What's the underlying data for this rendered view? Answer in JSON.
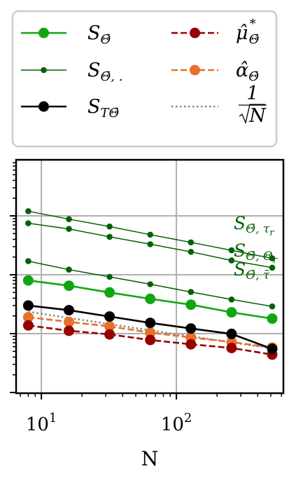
{
  "chart_data": {
    "type": "line",
    "xlabel": "N",
    "ylabel": "",
    "xscale": "log",
    "yscale": "log",
    "xlim": [
      6.5,
      620
    ],
    "x_ticks": [
      {
        "value": 10,
        "base": "10",
        "exp": "1"
      },
      {
        "value": 100,
        "base": "10",
        "exp": "2"
      }
    ],
    "x": [
      8,
      16,
      32,
      64,
      128,
      256,
      512
    ],
    "grid": true,
    "legend_position": "top",
    "series": [
      {
        "name": "S_Θ̄",
        "name_main": "S",
        "name_sub": "Θ̄",
        "color": "#11a611",
        "style": "solid",
        "marker_size": "large",
        "values": [
          0.08,
          0.065,
          0.05,
          0.039,
          0.031,
          0.023,
          0.018
        ]
      },
      {
        "name": "S_Θ̄,τr",
        "group": "S_Θ̄,·",
        "color": "#056105",
        "style": "thin",
        "marker_size": "small",
        "values": [
          1.2,
          0.88,
          0.66,
          0.48,
          0.355,
          0.26,
          0.19
        ]
      },
      {
        "name": "S_Θ̄,Θr",
        "group": "S_Θ̄,·",
        "color": "#056105",
        "style": "thin",
        "marker_size": "small",
        "values": [
          0.75,
          0.6,
          0.44,
          0.33,
          0.245,
          0.175,
          0.132
        ]
      },
      {
        "name": "S_Θ̄,τ̄",
        "group": "S_Θ̄,·",
        "color": "#056105",
        "style": "thin",
        "marker_size": "small",
        "values": [
          0.17,
          0.122,
          0.092,
          0.069,
          0.051,
          0.038,
          0.029
        ]
      },
      {
        "name": "S_TΘ̄",
        "name_main": "S",
        "name_sub": "TΘ̄",
        "color": "#000000",
        "style": "solid",
        "marker_size": "large",
        "values": [
          0.03,
          0.025,
          0.0195,
          0.0152,
          0.0122,
          0.0099,
          0.0055
        ]
      },
      {
        "name": "μ̂*_Θ̄",
        "name_main": "μ̂",
        "name_sup": "*",
        "name_sub": "Θ̄",
        "color": "#990000",
        "style": "dashed",
        "marker_size": "large",
        "values": [
          0.0138,
          0.0112,
          0.0097,
          0.0078,
          0.0066,
          0.0057,
          0.0044
        ]
      },
      {
        "name": "α̂_Θ̄",
        "name_main": "α̂",
        "name_sub": "Θ̄",
        "color": "#e8702a",
        "style": "dashed",
        "marker_size": "large",
        "values": [
          0.019,
          0.0158,
          0.0133,
          0.0104,
          0.0086,
          0.0072,
          0.0058
        ]
      },
      {
        "name": "1/√N",
        "name_num": "1",
        "name_den": "N",
        "color": "#888888",
        "style": "dotted",
        "marker_size": "none",
        "values": [
          0.0235,
          0.0185,
          0.0145,
          0.0114,
          0.009,
          0.0071,
          0.0056
        ]
      }
    ],
    "legend": [
      {
        "series": 0,
        "label_main": "S",
        "label_sub": "Θ̄"
      },
      {
        "series": 5,
        "label_main": "μ̂",
        "label_sup": "*",
        "label_sub": "Θ̄"
      },
      {
        "series": 1,
        "label_main": "S",
        "label_sub": "Θ̄, ."
      },
      {
        "series": 6,
        "label_main": "α̂",
        "label_sub": "Θ̄"
      },
      {
        "series": 4,
        "label_main": "S",
        "label_sub": "TΘ̄"
      },
      {
        "series": 7,
        "label_num": "1",
        "label_den": "N"
      }
    ],
    "annotations": [
      {
        "main": "S",
        "sub": "Θ̄, τ",
        "subsub": "r"
      },
      {
        "main": "S",
        "sub": "Θ̄, Θ",
        "subsub": "r"
      },
      {
        "main": "S",
        "sub": "Θ̄, τ̄",
        "subsub": ""
      }
    ]
  }
}
